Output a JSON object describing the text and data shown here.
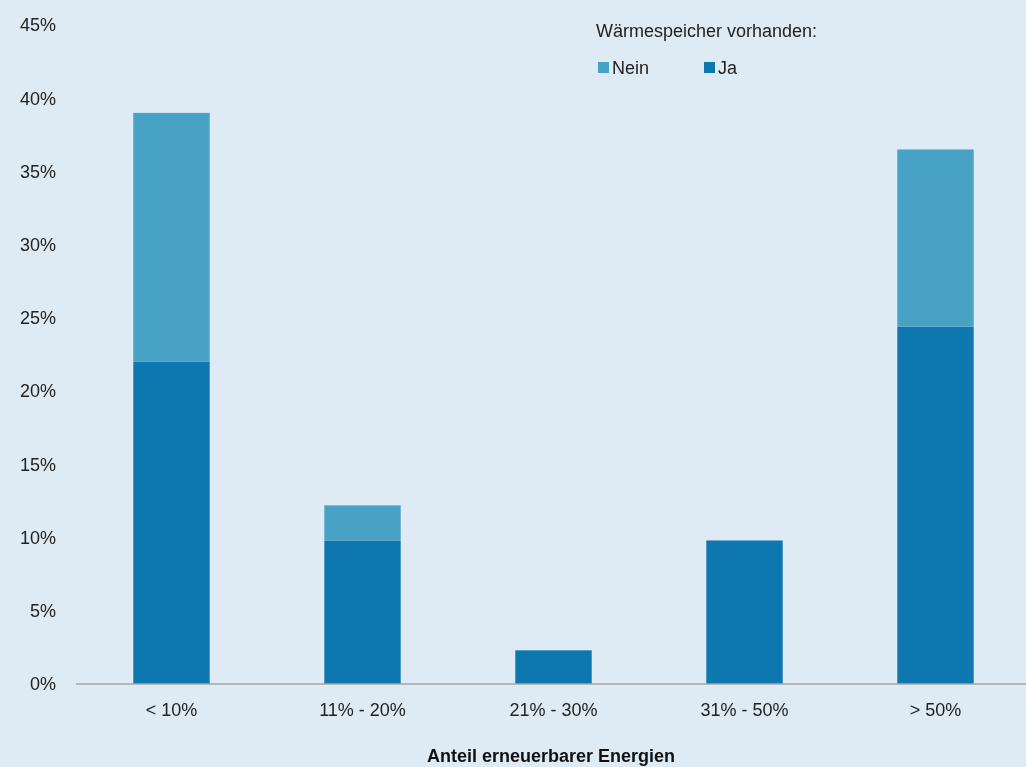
{
  "chart_data": {
    "type": "bar",
    "xlabel": "Anteil erneuerbarer Energien",
    "legend_title": "Wärmespeicher vorhanden:",
    "categories": [
      "< 10%",
      "11% - 20%",
      "21% - 30%",
      "31% - 50%",
      "> 50%"
    ],
    "series": [
      {
        "name": "Ja",
        "color": "#0f77b0",
        "values": [
          22,
          9.8,
          2.3,
          9.8,
          24.4
        ]
      },
      {
        "name": "Nein",
        "color": "#48a2c6",
        "values": [
          17,
          2.4,
          null,
          null,
          12.1
        ]
      }
    ],
    "stacked": true,
    "ylim": [
      0,
      45
    ],
    "yticks": [
      {
        "value": 0,
        "label": "0%"
      },
      {
        "value": 5,
        "label": "5%"
      },
      {
        "value": 10,
        "label": "10%"
      },
      {
        "value": 15,
        "label": "15%"
      },
      {
        "value": 20,
        "label": "20%"
      },
      {
        "value": 25,
        "label": "25%"
      },
      {
        "value": 30,
        "label": "30%"
      },
      {
        "value": 35,
        "label": "35%"
      },
      {
        "value": 40,
        "label": "40%"
      },
      {
        "value": 45,
        "label": "45%"
      }
    ],
    "grid": false,
    "legend": "top right"
  }
}
